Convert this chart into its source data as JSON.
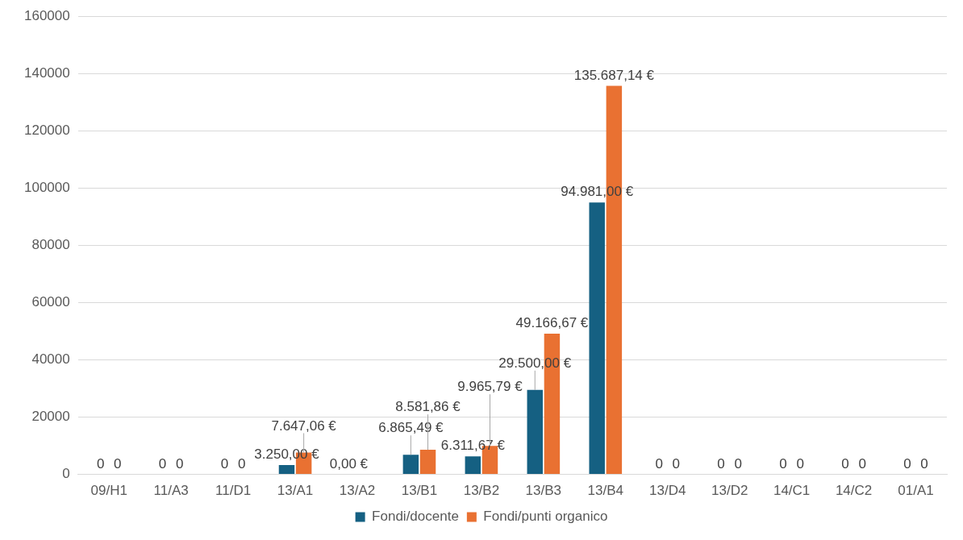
{
  "chart_data": {
    "type": "bar",
    "categories": [
      "09/H1",
      "11/A3",
      "11/D1",
      "13/A1",
      "13/A2",
      "13/B1",
      "13/B2",
      "13/B3",
      "13/B4",
      "13/D4",
      "13/D2",
      "14/C1",
      "14/C2",
      "01/A1"
    ],
    "series": [
      {
        "name": "Fondi/docente",
        "color": "#156082",
        "values": [
          0,
          0,
          0,
          3250.0,
          0,
          6865.49,
          6311.67,
          29500.0,
          94981.0,
          0,
          0,
          0,
          0,
          0
        ],
        "value_labels": [
          "0",
          "0",
          "0",
          "3.250,00 €",
          "0,00 €",
          "6.865,49 €",
          "6.311,67 €",
          "29.500,00 €",
          "94.981,00 €",
          "0",
          "0",
          "0",
          "0",
          "0"
        ]
      },
      {
        "name": "Fondi/punti organico",
        "color": "#e97132",
        "values": [
          0,
          0,
          0,
          7647.06,
          0,
          8581.86,
          9965.79,
          49166.67,
          135687.14,
          0,
          0,
          0,
          0,
          0
        ],
        "value_labels": [
          "0",
          "0",
          "0",
          "7.647,06 €",
          null,
          "8.581,86 €",
          "9.965,79 €",
          "49.166,67 €",
          "135.687,14 €",
          "0",
          "0",
          "0",
          "0",
          "0"
        ]
      }
    ],
    "ylim": [
      0,
      160000
    ],
    "yticks": [
      0,
      20000,
      40000,
      60000,
      80000,
      100000,
      120000,
      140000,
      160000
    ],
    "grid": "y",
    "legend": "bottom"
  }
}
